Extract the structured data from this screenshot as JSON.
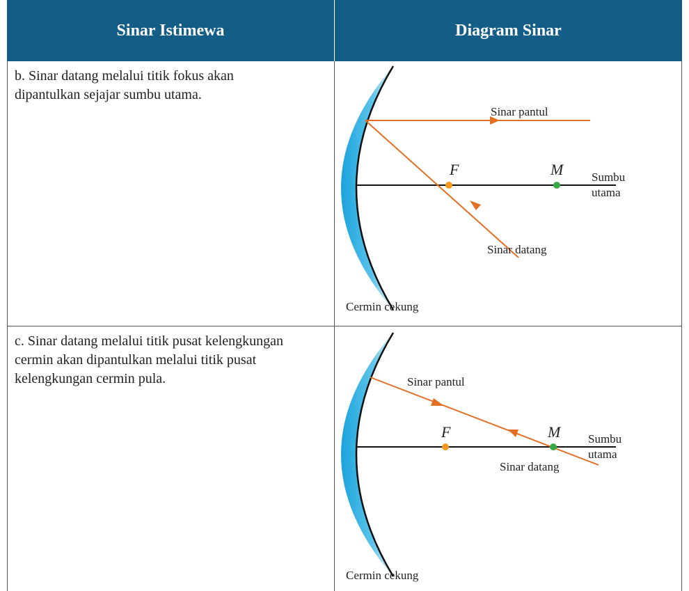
{
  "header": {
    "columns": [
      "Sinar Istimewa",
      "Diagram Sinar"
    ]
  },
  "rows": [
    {
      "text": "b. Sinar datang melalui titik fokus akan dipantulkan sejajar sumbu utama.",
      "diagram": {
        "reflected": "Sinar pantul",
        "incident": "Sinar datang",
        "focus": "F",
        "center": "M",
        "axis": "Sumbu utama",
        "mirror": "Cermin cekung"
      }
    },
    {
      "text": "c. Sinar datang melalui titik pusat kelengkungan cermin akan dipantulkan melalui titik pusat kelengkungan cermin pula.",
      "diagram": {
        "reflected": "Sinar pantul",
        "incident": "Sinar datang",
        "focus": "F",
        "center": "M",
        "axis": "Sumbu utama",
        "mirror": "Cermin cekung"
      }
    }
  ]
}
